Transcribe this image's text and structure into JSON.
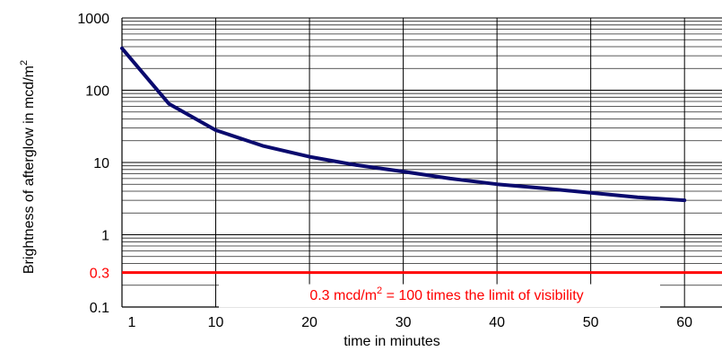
{
  "chart_data": {
    "type": "line",
    "xlabel": "time in minutes",
    "ylabel_text": "Brightness of afterglow in mcd/m",
    "ylabel_sup": "2",
    "y_scale": "log",
    "xlim": [
      0,
      64
    ],
    "ylim": [
      0.1,
      1000
    ],
    "grid": true,
    "x_ticks": [
      {
        "value": 1,
        "label": "1"
      },
      {
        "value": 10,
        "label": "10"
      },
      {
        "value": 20,
        "label": "20"
      },
      {
        "value": 30,
        "label": "30"
      },
      {
        "value": 40,
        "label": "40"
      },
      {
        "value": 50,
        "label": "50"
      },
      {
        "value": 60,
        "label": "60"
      }
    ],
    "y_ticks": [
      {
        "value": 0.1,
        "label": "0.1"
      },
      {
        "value": 1,
        "label": "1"
      },
      {
        "value": 10,
        "label": "10"
      },
      {
        "value": 100,
        "label": "100"
      },
      {
        "value": 1000,
        "label": "1000"
      }
    ],
    "series": [
      {
        "color": "#0a0a6e",
        "x": [
          0,
          5,
          10,
          15,
          20,
          25,
          30,
          35,
          40,
          45,
          50,
          55,
          60
        ],
        "y": [
          380,
          65,
          28,
          17,
          12,
          9.2,
          7.5,
          6.0,
          5.0,
          4.4,
          3.8,
          3.3,
          3.0
        ]
      }
    ],
    "reference_line": {
      "y": 0.3,
      "label": "0.3",
      "color": "#ff0000",
      "annotation_text": "0.3 mcd/m",
      "annotation_sup": "2",
      "annotation_rest": " = 100 times the limit of visibility"
    }
  }
}
